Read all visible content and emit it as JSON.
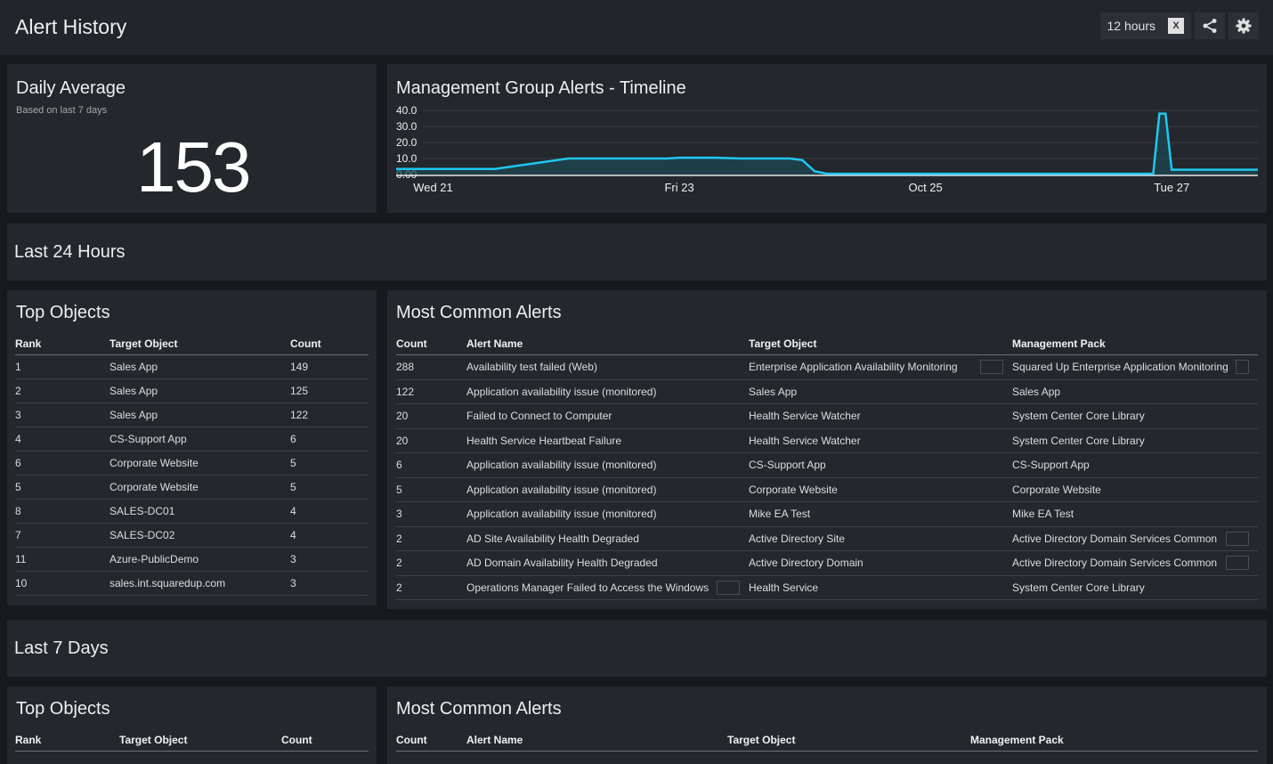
{
  "header": {
    "title": "Alert History",
    "time_range": "12 hours",
    "excel_icon": "excel-export-icon",
    "share_icon": "share-icon",
    "settings_icon": "gear-icon"
  },
  "daily_average": {
    "title": "Daily Average",
    "subtitle": "Based on last 7 days",
    "value": "153"
  },
  "timeline": {
    "title": "Management Group Alerts - Timeline"
  },
  "chart_data": {
    "type": "area",
    "title": "Management Group Alerts - Timeline",
    "y_ticks": [
      "40.0",
      "30.0",
      "20.0",
      "10.0",
      "0.00"
    ],
    "ylim": [
      0,
      40
    ],
    "xlim": [
      0,
      7
    ],
    "x_ticks": [
      {
        "label": "Wed 21",
        "x": 0.3
      },
      {
        "label": "Fri 23",
        "x": 2.3
      },
      {
        "label": "Oct 25",
        "x": 4.3
      },
      {
        "label": "Tue 27",
        "x": 6.3
      }
    ],
    "series": [
      {
        "color": "#1ec8f0",
        "points": [
          [
            0,
            3.5
          ],
          [
            0.8,
            3.5
          ],
          [
            1.4,
            10
          ],
          [
            2.2,
            10
          ],
          [
            2.3,
            10.5
          ],
          [
            2.6,
            10.5
          ],
          [
            2.8,
            10
          ],
          [
            3.2,
            10
          ],
          [
            3.3,
            9
          ],
          [
            3.4,
            2
          ],
          [
            3.5,
            0.5
          ],
          [
            6.15,
            0.5
          ],
          [
            6.2,
            38
          ],
          [
            6.25,
            38
          ],
          [
            6.3,
            3
          ],
          [
            6.5,
            3
          ],
          [
            7,
            3
          ]
        ]
      }
    ]
  },
  "last24": {
    "section_title": "Last 24 Hours",
    "top_objects": {
      "title": "Top Objects",
      "headers": [
        "Rank",
        "Target Object",
        "Count"
      ],
      "rows": [
        [
          "1",
          "Sales App",
          "149"
        ],
        [
          "2",
          "Sales App",
          "125"
        ],
        [
          "3",
          "Sales App",
          "122"
        ],
        [
          "4",
          "CS-Support App",
          "6"
        ],
        [
          "6",
          "Corporate Website",
          "5"
        ],
        [
          "5",
          "Corporate Website",
          "5"
        ],
        [
          "8",
          "SALES-DC01",
          "4"
        ],
        [
          "7",
          "SALES-DC02",
          "4"
        ],
        [
          "11",
          "Azure-PublicDemo",
          "3"
        ],
        [
          "10",
          "sales.int.squaredup.com",
          "3"
        ]
      ]
    },
    "most_common": {
      "title": "Most Common Alerts",
      "headers": [
        "Count",
        "Alert Name",
        "Target Object",
        "Management Pack"
      ],
      "rows": [
        {
          "count": "288",
          "name": "Availability test failed (Web)",
          "target": "Enterprise Application Availability Monitoring",
          "pack": "Squared Up Enterprise Application Monitoring",
          "name_more": false,
          "target_more": true,
          "pack_more": true
        },
        {
          "count": "122",
          "name": "Application availability issue (monitored)",
          "target": "Sales App",
          "pack": "Sales App",
          "name_more": false,
          "target_more": false,
          "pack_more": false
        },
        {
          "count": "20",
          "name": "Failed to Connect to Computer",
          "target": "Health Service Watcher",
          "pack": "System Center Core Library",
          "name_more": false,
          "target_more": false,
          "pack_more": false
        },
        {
          "count": "20",
          "name": "Health Service Heartbeat Failure",
          "target": "Health Service Watcher",
          "pack": "System Center Core Library",
          "name_more": false,
          "target_more": false,
          "pack_more": false
        },
        {
          "count": "6",
          "name": "Application availability issue (monitored)",
          "target": "CS-Support App",
          "pack": "CS-Support App",
          "name_more": false,
          "target_more": false,
          "pack_more": false
        },
        {
          "count": "5",
          "name": "Application availability issue (monitored)",
          "target": "Corporate Website",
          "pack": "Corporate Website",
          "name_more": false,
          "target_more": false,
          "pack_more": false
        },
        {
          "count": "3",
          "name": "Application availability issue (monitored)",
          "target": "Mike EA Test",
          "pack": "Mike EA Test",
          "name_more": false,
          "target_more": false,
          "pack_more": false
        },
        {
          "count": "2",
          "name": "AD Site Availability Health Degraded",
          "target": "Active Directory Site",
          "pack": "Active Directory Domain Services Common",
          "name_more": false,
          "target_more": false,
          "pack_more": true
        },
        {
          "count": "2",
          "name": "AD Domain Availability Health Degraded",
          "target": "Active Directory Domain",
          "pack": "Active Directory Domain Services Common",
          "name_more": false,
          "target_more": false,
          "pack_more": true
        },
        {
          "count": "2",
          "name": "Operations Manager Failed to Access the Windows",
          "target": "Health Service",
          "pack": "System Center Core Library",
          "name_more": true,
          "target_more": false,
          "pack_more": false
        }
      ]
    }
  },
  "last7": {
    "section_title": "Last 7 Days",
    "top_objects": {
      "title": "Top Objects",
      "headers": [
        "Rank",
        "Target Object",
        "Count"
      ]
    },
    "most_common": {
      "title": "Most Common Alerts",
      "headers": [
        "Count",
        "Alert Name",
        "Target Object",
        "Management Pack"
      ]
    }
  }
}
